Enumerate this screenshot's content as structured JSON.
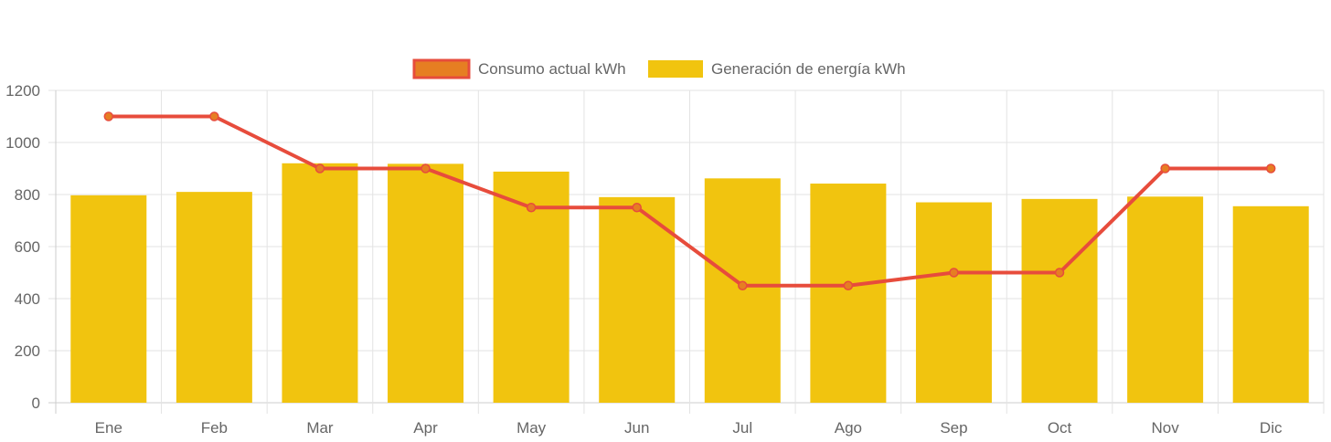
{
  "chart_data": {
    "type": "bar",
    "title": "",
    "xlabel": "",
    "ylabel": "",
    "categories": [
      "Ene",
      "Feb",
      "Mar",
      "Apr",
      "May",
      "Jun",
      "Jul",
      "Ago",
      "Sep",
      "Oct",
      "Nov",
      "Dic"
    ],
    "ylim": [
      0,
      1200
    ],
    "yticks": [
      0,
      200,
      400,
      600,
      800,
      1000,
      1200
    ],
    "grid": true,
    "legend_position": "top-center",
    "series": [
      {
        "name": "Consumo actual kWh",
        "type": "line",
        "color": "#e74c3c",
        "point_color": "#e67e22",
        "values": [
          1100,
          1100,
          900,
          900,
          750,
          750,
          450,
          450,
          500,
          500,
          900,
          900
        ]
      },
      {
        "name": "Generación de energía kWh",
        "type": "bar",
        "color": "#f1c40f",
        "values": [
          797,
          810,
          920,
          918,
          888,
          790,
          862,
          842,
          770,
          783,
          792,
          755
        ]
      }
    ]
  }
}
